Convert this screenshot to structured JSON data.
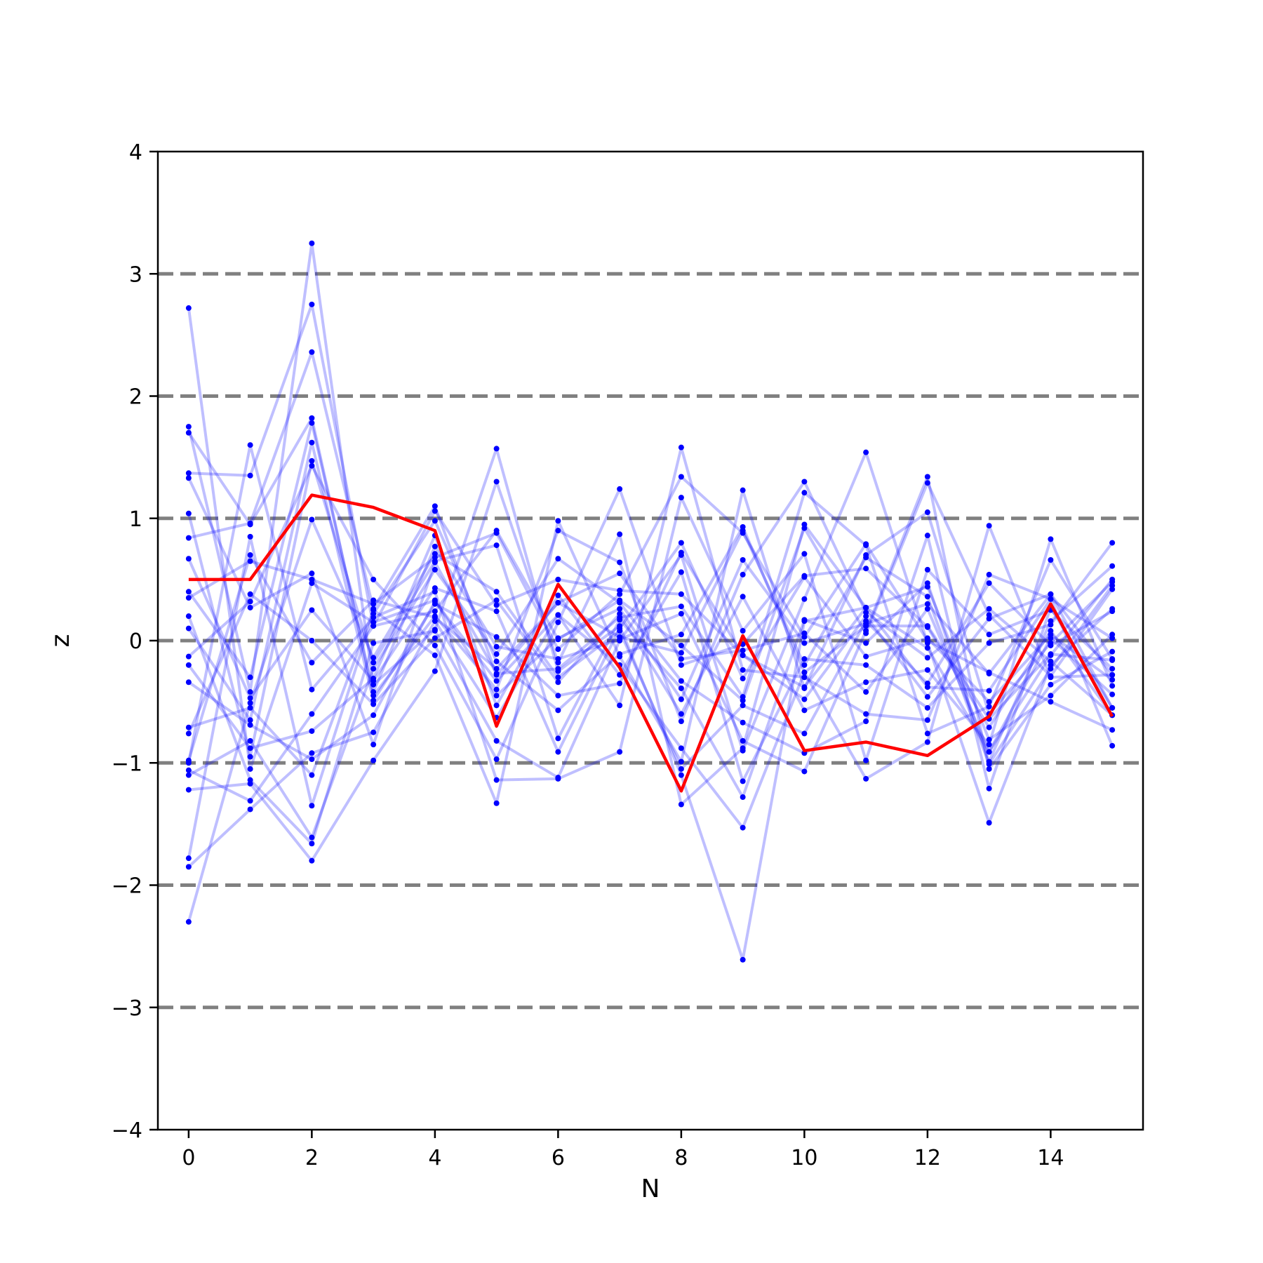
{
  "chart_data": {
    "type": "line",
    "xlabel": "N",
    "ylabel": "z",
    "xlim": [
      -0.5,
      15.5
    ],
    "ylim": [
      -4,
      4
    ],
    "xticks": [
      0,
      2,
      4,
      6,
      8,
      10,
      12,
      14
    ],
    "yticks": [
      -4,
      -3,
      -2,
      -1,
      0,
      1,
      2,
      3,
      4
    ],
    "ytick_labels": [
      "−4",
      "−3",
      "−2",
      "−1",
      "0",
      "1",
      "2",
      "3",
      "4"
    ],
    "reference_lines": [
      -3,
      -2,
      -1,
      0,
      1,
      2,
      3
    ],
    "colors": {
      "background_series": "#0000ff",
      "highlight_series": "#ff0000",
      "reference_lines": "#808080"
    },
    "x": [
      0,
      1,
      2,
      3,
      4,
      5,
      6,
      7,
      8,
      9,
      10,
      11,
      12,
      13,
      14,
      15
    ],
    "highlight_series": {
      "values": [
        0.5,
        0.5,
        1.19,
        1.09,
        0.9,
        -0.7,
        0.46,
        -0.22,
        -1.23,
        0.04,
        -0.9,
        -0.83,
        -0.94,
        -0.62,
        0.3,
        -0.62
      ]
    },
    "background_series": [
      {
        "values": [
          2.72,
          -1.05,
          0.47,
          0.15,
          0.33,
          -0.45,
          0.02,
          0.26,
          -0.48,
          0.66,
          -0.02,
          0.14,
          0.3,
          -0.27,
          0.38,
          -0.55
        ]
      },
      {
        "values": [
          1.75,
          -0.42,
          3.25,
          -0.36,
          0.09,
          1.57,
          -0.25,
          0.12,
          -1.1,
          -2.61,
          0.16,
          0.27,
          -0.06,
          -0.91,
          -0.12,
          0.5
        ]
      },
      {
        "values": [
          1.7,
          0.95,
          1.82,
          -0.45,
          0.2,
          -0.4,
          0.9,
          0.64,
          -0.66,
          0.54,
          1.3,
          0.23,
          -0.14,
          0.26,
          -0.17,
          -0.61
        ]
      },
      {
        "values": [
          1.37,
          1.35,
          2.75,
          0.12,
          0.24,
          0.9,
          0.01,
          0.33,
          -0.04,
          -0.49,
          0.92,
          0.06,
          1.29,
          0.21,
          -0.29,
          0.42
        ]
      },
      {
        "values": [
          1.33,
          0.27,
          0.55,
          -0.85,
          0.64,
          -0.27,
          -0.23,
          0.19,
          0.28,
          -0.46,
          1.21,
          0.78,
          -0.76,
          -0.54,
          0.66,
          -0.15
        ]
      },
      {
        "values": [
          1.04,
          -0.95,
          1.47,
          -0.18,
          0.65,
          0.78,
          -0.8,
          0.17,
          -0.39,
          -1.28,
          0.17,
          -0.02,
          0.47,
          -0.99,
          0.16,
          0.61
        ]
      },
      {
        "values": [
          0.84,
          0.96,
          2.36,
          0.26,
          1.1,
          -0.28,
          0.31,
          0.03,
          -0.1,
          0.9,
          -0.2,
          0.68,
          0.36,
          -1.01,
          -0.23,
          0.45
        ]
      },
      {
        "values": [
          0.67,
          -0.47,
          0.25,
          -0.33,
          0.43,
          0.24,
          -0.91,
          0.1,
          0.8,
          -0.31,
          0.52,
          -0.13,
          0.02,
          -0.5,
          0.05,
          -0.32
        ]
      },
      {
        "values": [
          0.4,
          -0.3,
          1.78,
          -0.42,
          0.77,
          -0.05,
          -0.15,
          0.01,
          0.22,
          -0.82,
          -1.07,
          0.08,
          1.34,
          -1.05,
          -0.36,
          -0.09
        ]
      },
      {
        "values": [
          0.35,
          0.65,
          0.5,
          0.3,
          0.68,
          0.88,
          -0.07,
          0.38,
          1.34,
          0.88,
          0.03,
          0.79,
          0.0,
          -0.26,
          -0.5,
          -0.73
        ]
      },
      {
        "values": [
          0.2,
          -1.14,
          -1.66,
          -0.02,
          0.08,
          -0.82,
          -1.12,
          0.0,
          0.7,
          -0.9,
          0.34,
          1.54,
          -0.02,
          -1.49,
          -0.2,
          0.26
        ]
      },
      {
        "values": [
          -0.13,
          0.32,
          1.43,
          0.5,
          -0.04,
          -0.97,
          0.15,
          1.24,
          -0.2,
          -0.03,
          0.53,
          0.59,
          0.11,
          -0.71,
          0.08,
          -0.61
        ]
      },
      {
        "values": [
          -0.2,
          -0.88,
          -0.74,
          -0.31,
          0.86,
          -0.53,
          0.37,
          -0.28,
          0.56,
          -1.15,
          -0.15,
          -0.2,
          -0.55,
          -0.02,
          0.13,
          0.8
        ]
      },
      {
        "values": [
          -0.34,
          -0.69,
          -0.97,
          -0.61,
          0.32,
          -0.33,
          0.21,
          -0.53,
          1.58,
          -0.24,
          -0.3,
          -0.6,
          -0.65,
          0.54,
          0.34,
          -0.86
        ]
      },
      {
        "values": [
          -0.71,
          -0.55,
          -1.1,
          0.25,
          -0.12,
          -1.33,
          0.98,
          -0.13,
          -0.99,
          1.23,
          -0.39,
          0.7,
          1.05,
          -0.6,
          -0.02,
          0.48
        ]
      },
      {
        "values": [
          -0.76,
          0.38,
          0.0,
          -0.52,
          0.02,
          0.33,
          -0.34,
          0.22,
          -0.6,
          0.36,
          -0.57,
          -0.34,
          -0.24,
          -0.85,
          0.83,
          -0.37
        ]
      },
      {
        "values": [
          -1.0,
          1.6,
          -0.4,
          0.19,
          0.4,
          -1.14,
          -1.13,
          -0.91,
          1.17,
          0.08,
          0.71,
          -0.98,
          0.58,
          0.05,
          0.25,
          -0.23
        ]
      },
      {
        "values": [
          -1.06,
          -1.31,
          -0.6,
          0.12,
          1.06,
          0.29,
          0.5,
          0.41,
          0.38,
          -0.12,
          -0.38,
          0.27,
          0.44,
          -0.81,
          -0.45,
          0.05
        ]
      },
      {
        "values": [
          -1.1,
          -0.82,
          -1.61,
          -0.23,
          0.58,
          -0.11,
          0.67,
          0.31,
          -0.33,
          -0.67,
          -0.92,
          -0.66,
          0.86,
          -1.21,
          0.27,
          -0.55
        ]
      },
      {
        "values": [
          -1.22,
          -1.17,
          -1.8,
          -0.98,
          -0.25,
          1.3,
          -0.18,
          0.87,
          -1.34,
          -0.88,
          0.95,
          0.27,
          -0.38,
          -0.41,
          0.34,
          0.02
        ]
      },
      {
        "values": [
          -1.78,
          0.85,
          -1.35,
          0.22,
          0.98,
          -0.17,
          -0.57,
          -0.11,
          0.05,
          0.93,
          -0.26,
          -1.13,
          -0.83,
          0.94,
          -0.3,
          -0.28
        ]
      },
      {
        "values": [
          -1.85,
          -1.38,
          -0.92,
          -0.75,
          0.16,
          -0.63,
          0.21,
          -0.2,
          -0.88,
          -1.53,
          -0.26,
          0.12,
          0.12,
          -0.64,
          -0.11,
          -0.16
        ]
      },
      {
        "values": [
          -2.3,
          -0.51,
          0.99,
          -0.14,
          0.71,
          0.4,
          -0.3,
          0.08,
          -1.05,
          -0.53,
          -0.76,
          0.16,
          -0.35,
          0.47,
          -0.04,
          0.24
        ]
      },
      {
        "values": [
          -0.98,
          0.7,
          -0.18,
          0.33,
          0.19,
          -0.23,
          0.31,
          0.55,
          -0.15,
          -0.08,
          0.06,
          -0.42,
          0.26,
          -0.91,
          0.02,
          -0.44
        ]
      },
      {
        "values": [
          0.1,
          -0.65,
          1.62,
          -0.49,
          0.3,
          0.03,
          -0.45,
          -0.35,
          0.72,
          -0.12,
          -0.48,
          0.2,
          -0.46,
          0.18,
          0.38,
          -0.28
        ]
      }
    ]
  }
}
